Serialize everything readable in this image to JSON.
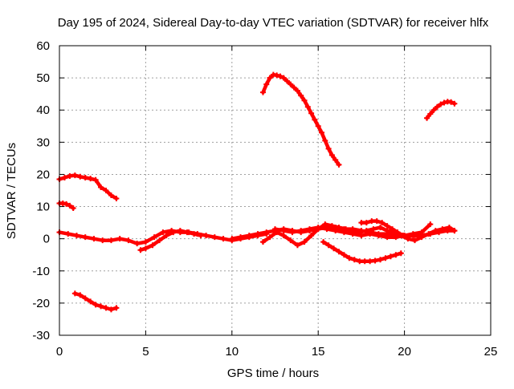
{
  "chart_data": {
    "type": "scatter",
    "title": "Day 195 of 2024, Sidereal Day-to-day VTEC variation (SDTVAR) for receiver hlfx",
    "xlabel": "GPS time / hours",
    "ylabel": "SDTVAR / TECUs",
    "xlim": [
      0,
      25
    ],
    "ylim": [
      -30,
      60
    ],
    "xticks": [
      0,
      5,
      10,
      15,
      20,
      25
    ],
    "yticks": [
      -30,
      -20,
      -10,
      0,
      10,
      20,
      30,
      40,
      50,
      60
    ],
    "grid": true,
    "color": "#ff0000",
    "series": [
      {
        "name": "arc-top-left",
        "x": [
          0.0,
          0.3,
          0.6,
          0.9,
          1.2,
          1.5,
          1.8,
          2.1,
          2.4,
          2.7,
          3.0,
          3.3
        ],
        "y": [
          18.5,
          19.0,
          19.5,
          19.7,
          19.3,
          19.0,
          18.7,
          18.3,
          16.0,
          15.0,
          13.5,
          12.5
        ]
      },
      {
        "name": "arc-short-left",
        "x": [
          0.0,
          0.2,
          0.4,
          0.6,
          0.8
        ],
        "y": [
          11.0,
          11.0,
          10.8,
          10.3,
          9.5
        ]
      },
      {
        "name": "arc-negative-left",
        "x": [
          0.9,
          1.2,
          1.5,
          1.8,
          2.1,
          2.4,
          2.7,
          3.0,
          3.3
        ],
        "y": [
          -17.0,
          -17.5,
          -18.5,
          -19.5,
          -20.5,
          -21.0,
          -21.5,
          -22.0,
          -21.5
        ]
      },
      {
        "name": "arc-zero-1",
        "x": [
          0.0,
          0.5,
          1.0,
          1.5,
          2.0,
          2.5,
          3.0,
          3.5,
          4.0,
          4.5,
          5.0,
          5.5,
          6.0,
          6.5,
          7.0,
          7.5,
          8.0,
          8.5,
          9.0,
          9.5,
          10.0,
          10.5,
          11.0,
          11.5,
          12.0
        ],
        "y": [
          2.0,
          1.5,
          1.0,
          0.5,
          0.0,
          -0.5,
          -0.5,
          0.0,
          -0.5,
          -1.5,
          -1.0,
          0.5,
          2.0,
          2.5,
          2.0,
          2.0,
          1.5,
          1.0,
          0.5,
          0.0,
          -0.5,
          0.0,
          0.5,
          1.0,
          1.5
        ]
      },
      {
        "name": "arc-zero-2",
        "x": [
          4.7,
          5.0,
          5.4,
          5.8,
          6.2,
          6.6,
          7.0,
          7.4,
          7.8,
          8.2
        ],
        "y": [
          -3.5,
          -3.0,
          -2.0,
          -0.5,
          1.0,
          2.0,
          2.5,
          2.0,
          1.5,
          1.0
        ]
      },
      {
        "name": "arc-zero-3",
        "x": [
          10.0,
          10.5,
          11.0,
          11.5,
          12.0,
          12.5,
          13.0,
          13.5,
          14.0,
          14.5,
          15.0,
          15.5,
          16.0,
          16.5,
          17.0,
          17.5,
          18.0,
          18.5,
          19.0,
          19.5,
          20.0,
          20.5,
          21.0,
          21.5,
          22.0,
          22.5,
          22.9
        ],
        "y": [
          0.0,
          0.5,
          1.0,
          1.5,
          2.0,
          2.5,
          3.0,
          2.5,
          2.0,
          2.5,
          3.0,
          3.5,
          3.5,
          3.0,
          3.0,
          2.5,
          2.0,
          1.5,
          1.5,
          1.0,
          1.0,
          1.0,
          1.0,
          1.5,
          2.0,
          2.5,
          2.5
        ]
      },
      {
        "name": "arc-zero-4",
        "x": [
          11.8,
          12.2,
          12.6,
          13.0,
          13.4,
          13.8,
          14.2,
          14.6,
          15.0,
          15.4,
          15.8,
          16.2,
          16.6,
          17.0,
          17.4,
          17.8,
          18.2,
          18.6,
          19.0,
          19.4,
          19.8,
          20.2,
          20.6,
          21.0,
          21.4,
          21.8,
          22.2,
          22.6,
          22.9
        ],
        "y": [
          -1.0,
          0.5,
          2.0,
          1.0,
          -0.5,
          -2.0,
          -1.0,
          1.0,
          3.0,
          4.5,
          4.0,
          3.5,
          3.0,
          2.5,
          2.0,
          2.5,
          3.0,
          3.5,
          2.5,
          2.0,
          1.0,
          0.0,
          -0.5,
          0.5,
          1.5,
          2.5,
          3.0,
          3.5,
          2.5
        ]
      },
      {
        "name": "arc-zero-5",
        "x": [
          12.5,
          13.0,
          13.5,
          14.0,
          14.5,
          15.0,
          15.5,
          16.0,
          16.5,
          17.0,
          17.5,
          18.0,
          18.5,
          19.0,
          19.5,
          20.0,
          20.5,
          21.0,
          21.5
        ],
        "y": [
          3.0,
          2.5,
          2.0,
          2.5,
          3.0,
          3.5,
          3.0,
          2.5,
          2.0,
          1.5,
          1.0,
          1.5,
          1.0,
          0.5,
          0.5,
          1.0,
          1.5,
          2.0,
          4.5
        ]
      },
      {
        "name": "arc-bump-18",
        "x": [
          17.5,
          17.8,
          18.1,
          18.4,
          18.7,
          19.0,
          19.3,
          19.6,
          19.9
        ],
        "y": [
          5.0,
          5.0,
          5.5,
          5.5,
          5.0,
          4.0,
          3.0,
          2.0,
          1.0
        ]
      },
      {
        "name": "arc-negative-mid",
        "x": [
          15.3,
          15.6,
          15.9,
          16.2,
          16.5,
          16.8,
          17.1,
          17.4,
          17.7,
          18.0,
          18.3,
          18.6,
          18.9,
          19.2,
          19.5,
          19.8
        ],
        "y": [
          -1.0,
          -2.0,
          -3.0,
          -4.0,
          -5.0,
          -6.0,
          -6.5,
          -7.0,
          -7.0,
          -7.0,
          -6.8,
          -6.5,
          -6.0,
          -5.5,
          -5.0,
          -4.5
        ]
      },
      {
        "name": "arc-peak-50",
        "x": [
          11.8,
          12.0,
          12.2,
          12.4,
          12.6,
          12.8,
          13.0,
          13.2,
          13.4,
          13.6,
          13.8,
          14.0,
          14.2,
          14.4,
          14.6,
          14.8,
          15.0,
          15.2,
          15.4,
          15.6,
          15.8,
          16.0,
          16.2
        ],
        "y": [
          45.5,
          48.0,
          50.0,
          51.0,
          50.8,
          50.5,
          50.0,
          49.0,
          48.0,
          47.0,
          46.0,
          44.5,
          43.0,
          41.0,
          39.0,
          37.0,
          35.0,
          33.0,
          30.5,
          28.0,
          26.0,
          24.5,
          23.0
        ]
      },
      {
        "name": "arc-right-40",
        "x": [
          21.3,
          21.5,
          21.7,
          21.9,
          22.1,
          22.3,
          22.5,
          22.7,
          22.9
        ],
        "y": [
          37.5,
          38.8,
          40.0,
          41.0,
          41.8,
          42.3,
          42.6,
          42.5,
          42.0
        ]
      }
    ]
  }
}
